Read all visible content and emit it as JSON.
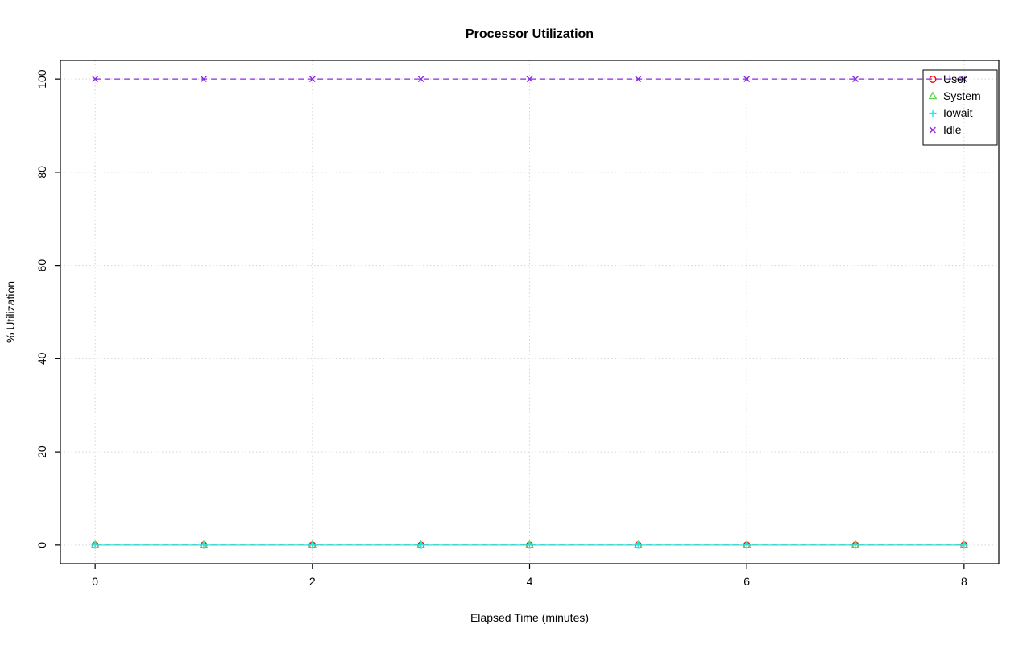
{
  "chart_data": {
    "type": "line",
    "title": "Processor Utilization",
    "xlabel": "Elapsed Time (minutes)",
    "ylabel": "% Utilization",
    "xlim": [
      0,
      8
    ],
    "ylim": [
      0,
      100
    ],
    "x_ticks": [
      0,
      2,
      4,
      6,
      8
    ],
    "y_ticks": [
      0,
      20,
      40,
      60,
      80,
      100
    ],
    "grid": true,
    "grid_style": "dotted",
    "legend_position": "top-right",
    "x": [
      0,
      1,
      2,
      3,
      4,
      5,
      6,
      7,
      8
    ],
    "series": [
      {
        "name": "User",
        "marker": "circle",
        "color": "#ff0000",
        "line_style": "dashed",
        "values": [
          0,
          0,
          0,
          0,
          0,
          0,
          0,
          0,
          0
        ]
      },
      {
        "name": "System",
        "marker": "triangle",
        "color": "#61d04f",
        "line_style": "dashed",
        "values": [
          0,
          0,
          0,
          0,
          0,
          0,
          0,
          0,
          0
        ]
      },
      {
        "name": "Iowait",
        "marker": "plus",
        "color": "#28e2e5",
        "line_style": "solid",
        "values": [
          0,
          0,
          0,
          0,
          0,
          0,
          0,
          0,
          0
        ]
      },
      {
        "name": "Idle",
        "marker": "x",
        "color": "#8a2be2",
        "line_style": "dashed",
        "values": [
          100,
          100,
          100,
          100,
          100,
          100,
          100,
          100,
          100
        ]
      }
    ],
    "colors": {
      "grid": "#d4d4d4",
      "axis": "#000000",
      "background": "#ffffff"
    }
  }
}
